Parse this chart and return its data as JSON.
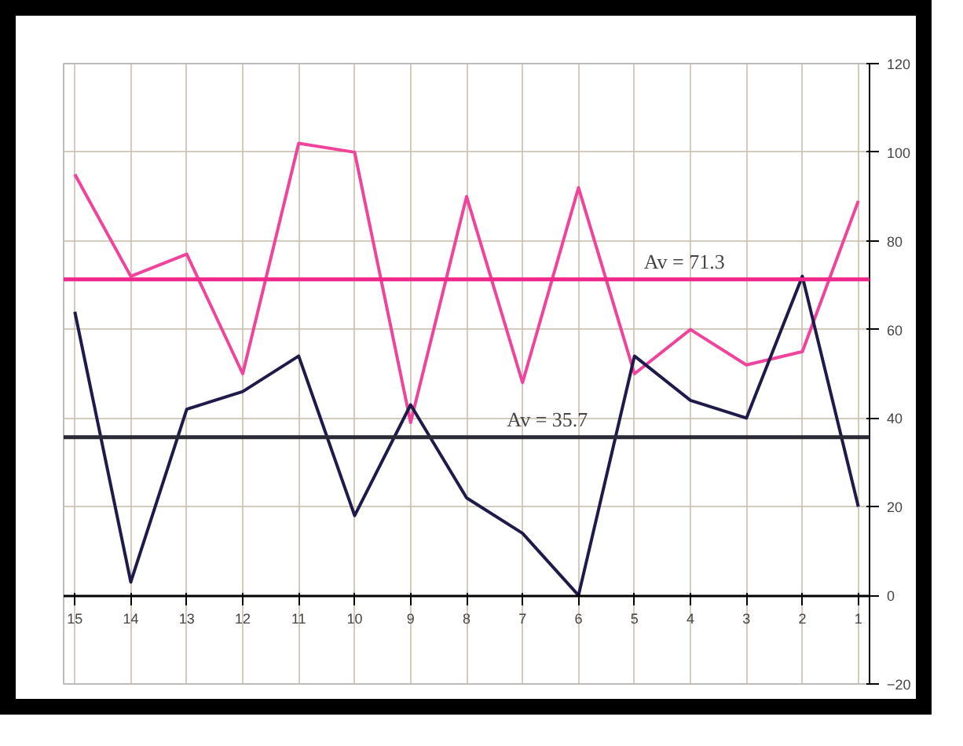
{
  "chart_data": {
    "type": "line",
    "x": [
      15,
      14,
      13,
      12,
      11,
      10,
      9,
      8,
      7,
      6,
      5,
      4,
      3,
      2,
      1
    ],
    "series": [
      {
        "color": "#f0449c",
        "values": [
          95,
          72,
          77,
          50,
          102,
          100,
          39,
          90,
          48,
          92,
          50,
          60,
          52,
          55,
          89
        ]
      },
      {
        "color": "#1e1b4b",
        "values": [
          64,
          3,
          42,
          46,
          54,
          18,
          43,
          22,
          14,
          0,
          54,
          44,
          40,
          72,
          20
        ]
      }
    ],
    "xlim": [
      15.2,
      0.8
    ],
    "ylim": [
      -20,
      120
    ],
    "xticks": [
      15,
      14,
      13,
      12,
      11,
      10,
      9,
      8,
      7,
      6,
      5,
      4,
      3,
      2,
      1
    ],
    "yticks": [
      -20,
      0,
      20,
      40,
      60,
      80,
      100,
      120
    ],
    "ref_lines": [
      {
        "axis": "y",
        "value": 71.3,
        "label": "Av = 71.3",
        "color": "#f0288c"
      },
      {
        "axis": "y",
        "value": 35.7,
        "label": "Av = 35.7",
        "color": "#2a2a36"
      }
    ],
    "grid": true,
    "marker": "none",
    "line_style": "solid"
  }
}
